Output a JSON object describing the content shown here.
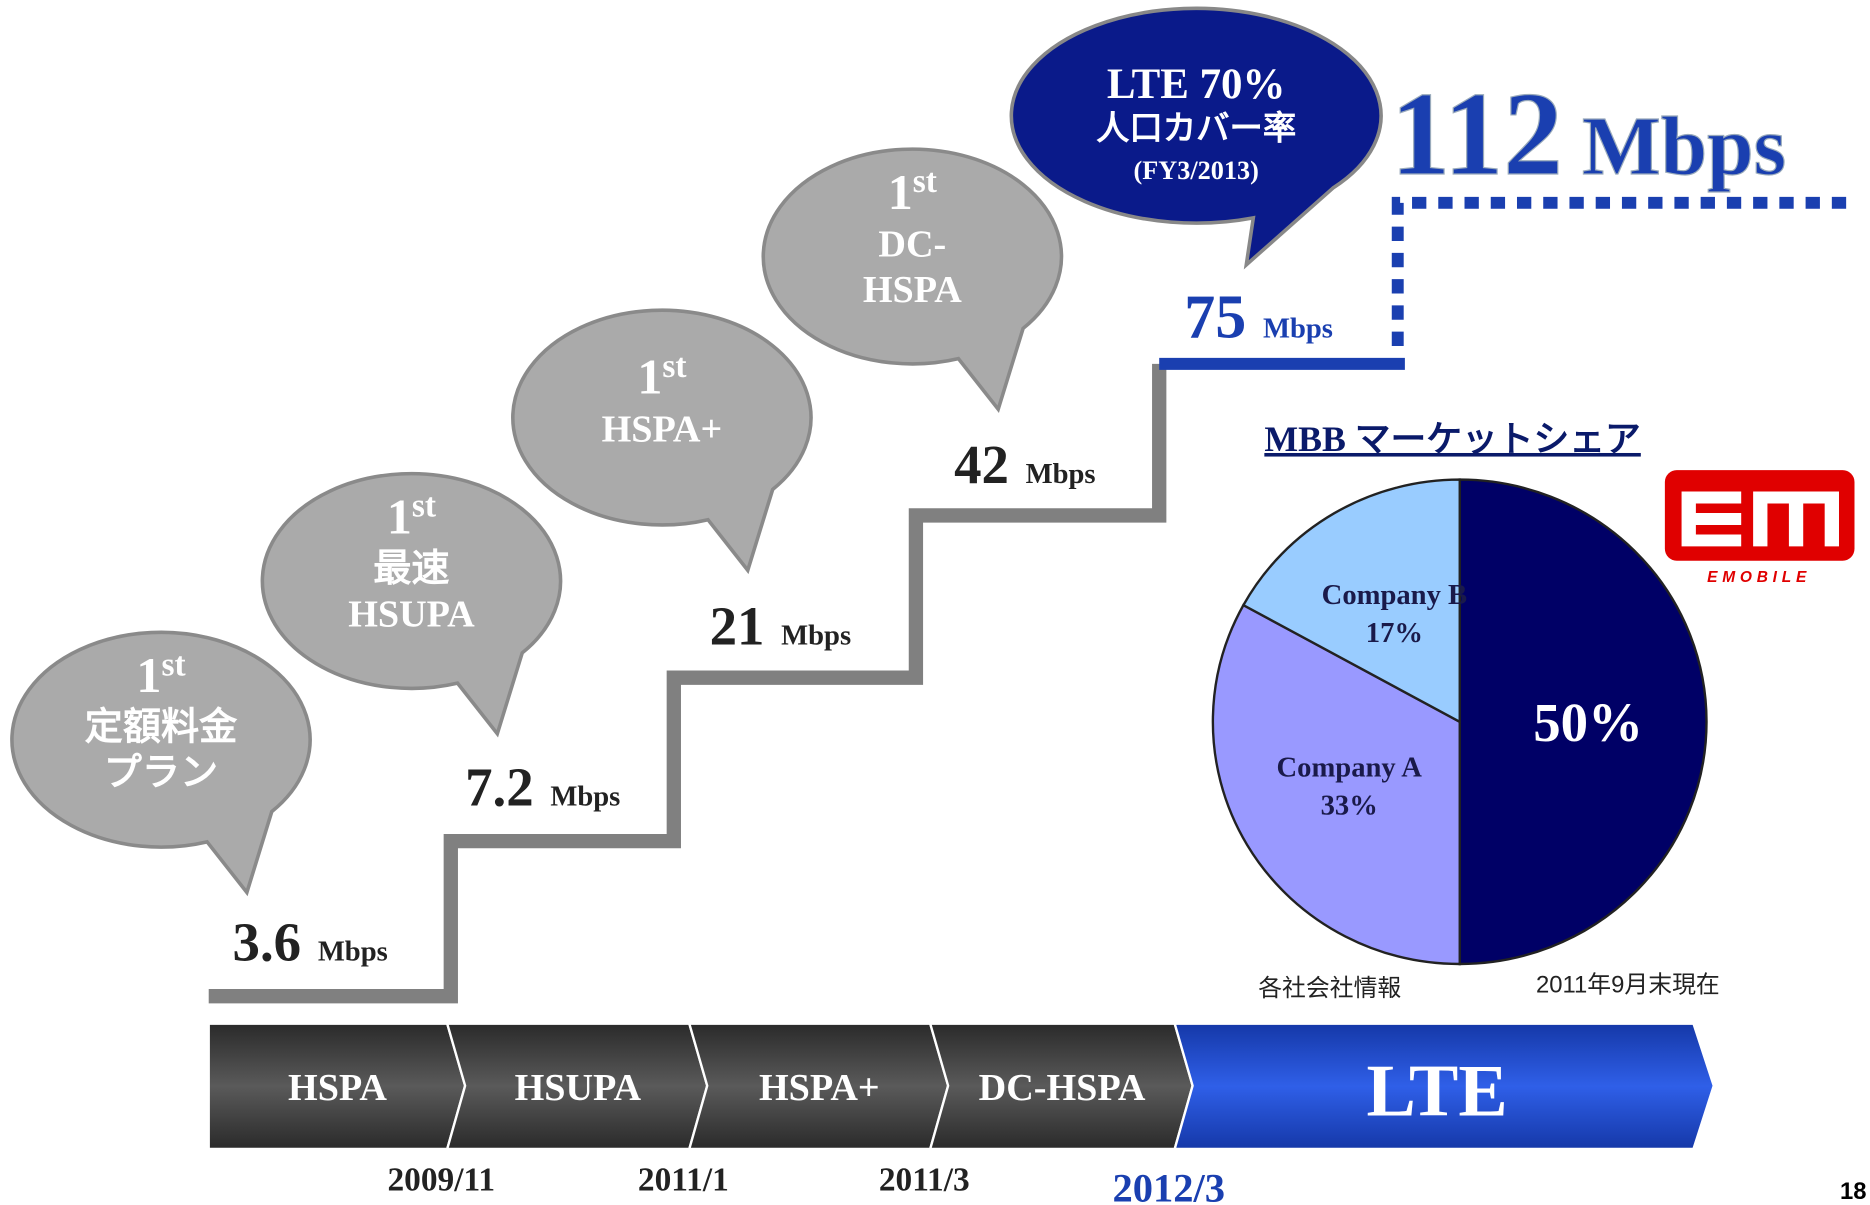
{
  "headline": {
    "number": "112",
    "unit": "Mbps"
  },
  "lte_bubble": {
    "lines": [
      "LTE 70%",
      "人口カバー率",
      "(FY3/2013)"
    ]
  },
  "milestones": [
    {
      "rank": "1",
      "suffix": "st",
      "lines": [
        "定額料金",
        "プラン"
      ],
      "speed": "3.6",
      "unit": "Mbps"
    },
    {
      "rank": "1",
      "suffix": "st",
      "lines": [
        "最速",
        "HSUPA"
      ],
      "speed": "7.2",
      "unit": "Mbps"
    },
    {
      "rank": "1",
      "suffix": "st",
      "lines": [
        "HSPA+"
      ],
      "speed": "21",
      "unit": "Mbps"
    },
    {
      "rank": "1",
      "suffix": "st",
      "lines": [
        "DC-",
        "HSPA"
      ],
      "speed": "42",
      "unit": "Mbps"
    }
  ],
  "lte_speed": {
    "speed": "75",
    "unit": "Mbps"
  },
  "technologies": [
    "HSPA",
    "HSUPA",
    "HSPA+",
    "DC-HSPA",
    "LTE"
  ],
  "dates": [
    "2009/11",
    "2011/1",
    "2011/3",
    "2012/3"
  ],
  "chart_data": {
    "type": "pie",
    "title": "MBB マーケットシェア",
    "categories": [
      null,
      "Company A",
      "Company B"
    ],
    "values": [
      50,
      33,
      17
    ],
    "value_labels": [
      "50%",
      "33%",
      "17%"
    ],
    "colors": [
      "#000066",
      "#9999ff",
      "#99ccff"
    ]
  },
  "notes": [
    "各社会社情報",
    "2011年9月末現在"
  ],
  "logo": "EMOBILE",
  "page_number": "18"
}
